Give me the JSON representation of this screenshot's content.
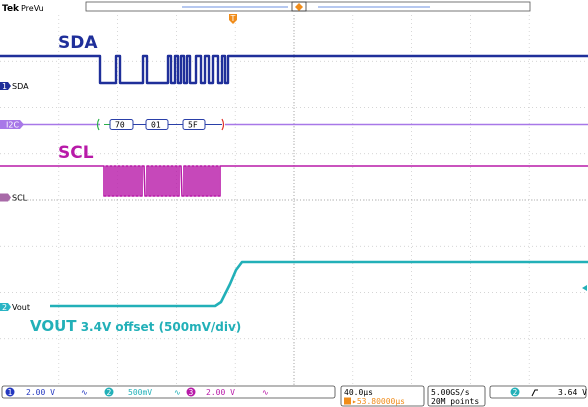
{
  "header": {
    "brand": "Tek",
    "mode": "PreVu"
  },
  "trigger_marker": "T",
  "channels": {
    "sda": {
      "title": "SDA",
      "marker": "1",
      "label": "SDA",
      "color": "#1f2f9a"
    },
    "bus": {
      "label": "I2C",
      "color": "#a878e8",
      "packets": [
        "70",
        "01",
        "5F"
      ]
    },
    "scl": {
      "title": "SCL",
      "marker": "3",
      "label": "SCL",
      "color": "#b81aa8"
    },
    "vout": {
      "marker": "2",
      "label": "Vout",
      "color": "#22b0b8",
      "annotation_main": "VOUT",
      "annotation_rest": " 3.4V offset (500mV/div)"
    }
  },
  "status": {
    "ch1_num": "1",
    "ch1_scale": "2.00 V",
    "ch2_num": "2",
    "ch2_scale": "500mV",
    "ch3_num": "3",
    "ch3_scale": "2.00 V",
    "timebase": "40.0µs",
    "trigger_pos": "▸53.80000µs",
    "sample_rate": "5.00GS/s",
    "record_length": "20M points",
    "trig_src": "2",
    "trig_level": "3.64 V"
  }
}
